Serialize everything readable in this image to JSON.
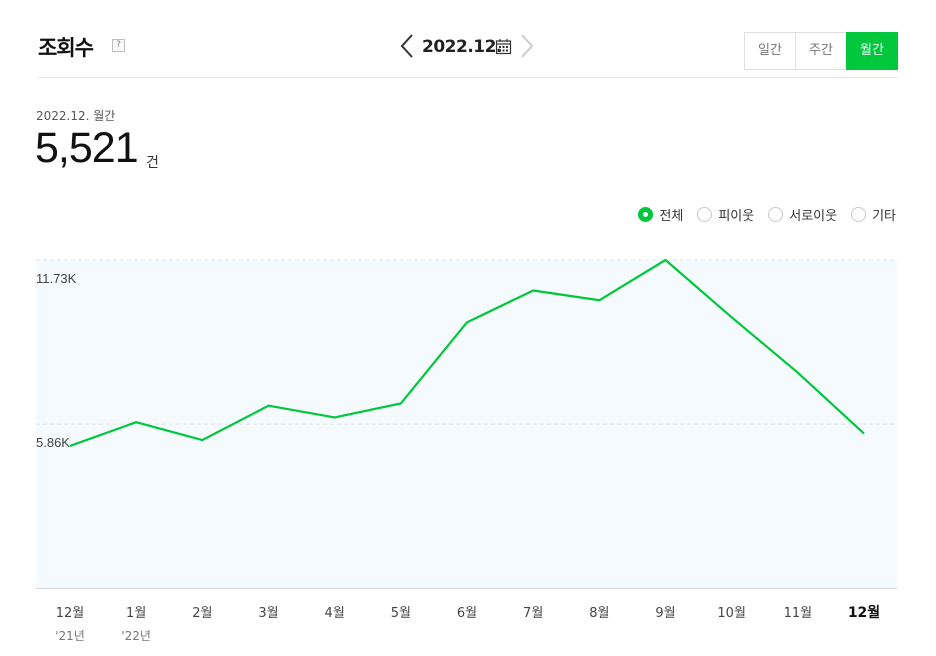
{
  "header": {
    "title": "조회수",
    "help": "?",
    "date": "2022.12.",
    "tabs": [
      {
        "label": "일간",
        "active": false
      },
      {
        "label": "주간",
        "active": false
      },
      {
        "label": "월간",
        "active": true
      }
    ]
  },
  "summary": {
    "period": "2022.12. 월간",
    "value": "5,521",
    "unit": "건"
  },
  "legend": [
    {
      "label": "전체",
      "selected": true
    },
    {
      "label": "피이웃",
      "selected": false
    },
    {
      "label": "서로이웃",
      "selected": false
    },
    {
      "label": "기타",
      "selected": false
    }
  ],
  "colors": {
    "accent": "#00c73c",
    "plot_bg": "#f5fafe"
  },
  "chart_data": {
    "type": "line",
    "categories": [
      "12월",
      "1월",
      "2월",
      "3월",
      "4월",
      "5월",
      "6월",
      "7월",
      "8월",
      "9월",
      "10월",
      "11월",
      "12월"
    ],
    "sublabels": [
      "'21년",
      "'22년",
      "",
      "",
      "",
      "",
      "",
      "",
      "",
      "",
      "",
      "",
      ""
    ],
    "highlight_index": 12,
    "series": [
      {
        "values": [
          5080,
          5930,
          5290,
          6520,
          6100,
          6600,
          9500,
          10640,
          10290,
          11730,
          9680,
          7700,
          5521
        ]
      }
    ],
    "y_ticks": [
      {
        "value": 11730,
        "label": "11.73K"
      },
      {
        "value": 5860,
        "label": "5.86K"
      }
    ],
    "ylim": [
      0,
      11730
    ],
    "grid": true,
    "legend_position": "top-right"
  }
}
